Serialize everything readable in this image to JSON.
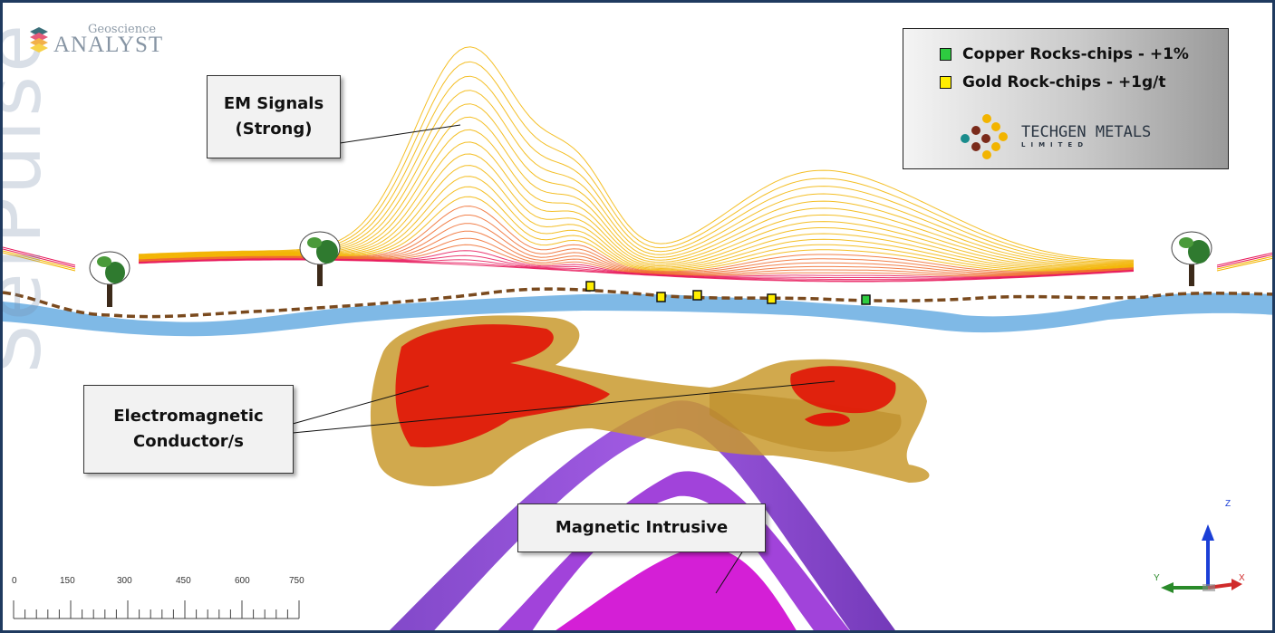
{
  "app": {
    "logo_small": "Geoscience",
    "logo_big": "ANALYST"
  },
  "watermark": {
    "text": "SelPulse"
  },
  "legend": {
    "items": [
      {
        "label": "Copper Rocks-chips - +1%",
        "color": "#2ecc40"
      },
      {
        "label": "Gold Rock-chips - +1g/t",
        "color": "#ffee00"
      }
    ],
    "company_name": "TECHGEN METALS",
    "company_sub": "LIMITED"
  },
  "callouts": {
    "em_signals": "EM Signals\n(Strong)",
    "conductor": "Electromagnetic\nConductor/s",
    "intrusive": "Magnetic Intrusive"
  },
  "scale_bar": {
    "ticks": [
      "0",
      "150",
      "300",
      "450",
      "600",
      "750"
    ]
  },
  "axes": {
    "z": "Z",
    "y": "Y",
    "x": "X"
  },
  "colors": {
    "frame": "#1f3a5f",
    "em_lines": "#f2b400",
    "em_base": "#e8185a",
    "terrain": "#7fb9e6",
    "ground_line": "#7a4a1e",
    "conductor_shell": "#c99a2e",
    "conductor_core": "#e01a0a",
    "intrusive_outer": "#7a3cc4",
    "intrusive_inner": "#d41fd6"
  }
}
